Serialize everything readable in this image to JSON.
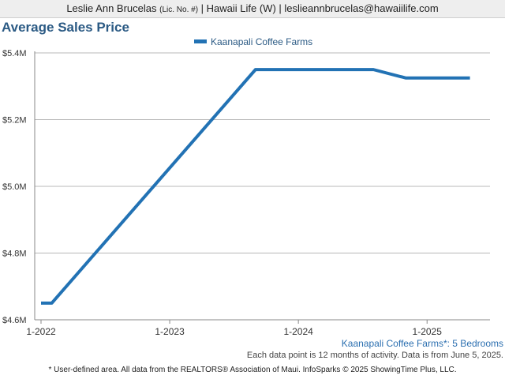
{
  "header": {
    "name": "Leslie Ann Brucelas",
    "license": "(Lic. No. #)",
    "rest": "| Hawaii Life (W) | leslieannbrucelas@hawaiilife.com"
  },
  "chart_data": {
    "type": "line",
    "title": "Average Sales Price",
    "xlabel": "",
    "ylabel": "",
    "ylim": [
      4.6,
      5.4
    ],
    "yticks": [
      4.6,
      4.8,
      5.0,
      5.2,
      5.4
    ],
    "ytick_labels": [
      "$4.6M",
      "$4.8M",
      "$5.0M",
      "$5.2M",
      "$5.4M"
    ],
    "xticks": [
      "1-2022",
      "1-2023",
      "1-2024",
      "1-2025"
    ],
    "grid": true,
    "legend_position": "top-center",
    "series": [
      {
        "name": "Kaanapali Coffee Farms",
        "color": "#2272b4",
        "x": [
          "2022-01",
          "2022-02",
          "2023-09",
          "2024-08",
          "2024-11",
          "2025-05"
        ],
        "values": [
          4.65,
          4.65,
          5.35,
          5.35,
          5.325,
          5.325
        ]
      }
    ]
  },
  "subtitle": "Kaanapali Coffee Farms*: 5 Bedrooms",
  "note": "Each data point is 12 months of activity. Data is from June 5, 2025.",
  "footer": "* User-defined area. All data from the REALTORS® Association of Maui. InfoSparks © 2025 ShowingTime Plus, LLC."
}
